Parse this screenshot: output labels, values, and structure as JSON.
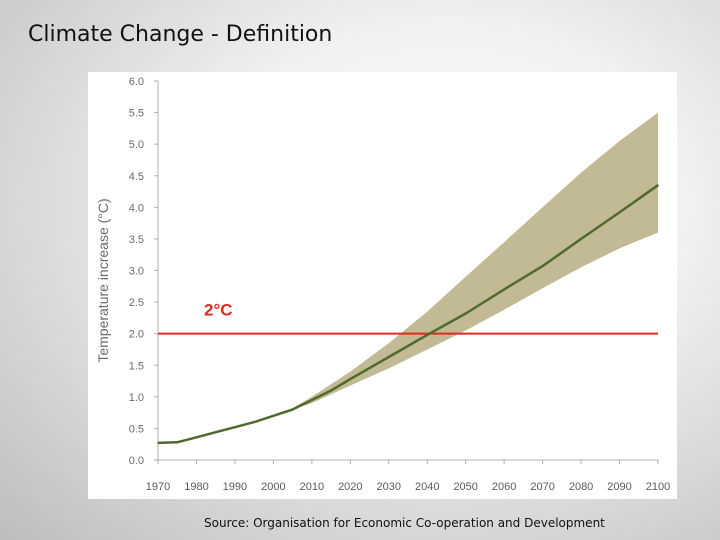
{
  "slide": {
    "title": "Climate Change - Definition",
    "source": "Source: Organisation for Economic Co-operation and Development"
  },
  "chart_data": {
    "type": "line",
    "title": "",
    "xlabel": "",
    "ylabel": "Temperature increase (°C)",
    "xlim": [
      1970,
      2100
    ],
    "ylim": [
      0,
      6.0
    ],
    "x_ticks": [
      "1970",
      "1980",
      "1990",
      "2000",
      "2010",
      "2020",
      "2030",
      "2040",
      "2050",
      "2060",
      "2070",
      "2080",
      "2090",
      "2100"
    ],
    "y_ticks": [
      "0.0",
      "0.5",
      "1.0",
      "1.5",
      "2.0",
      "2.5",
      "3.0",
      "3.5",
      "4.0",
      "4.5",
      "5.0",
      "5.5",
      "6.0"
    ],
    "grid": false,
    "series": [
      {
        "name": "",
        "color": "#4f6a2c",
        "x": [
          1970,
          1975,
          1980,
          1985,
          1990,
          1995,
          2000,
          2005,
          2010,
          2015,
          2020,
          2030,
          2040,
          2050,
          2060,
          2070,
          2080,
          2090,
          2100
        ],
        "y": [
          0.27,
          0.28,
          0.36,
          0.44,
          0.52,
          0.6,
          0.7,
          0.8,
          0.95,
          1.1,
          1.28,
          1.63,
          1.98,
          2.32,
          2.7,
          3.07,
          3.5,
          3.92,
          4.35
        ]
      }
    ],
    "band": {
      "color": "#c2b995",
      "x": [
        2005,
        2010,
        2020,
        2030,
        2040,
        2050,
        2060,
        2070,
        2080,
        2090,
        2100
      ],
      "upper": [
        0.82,
        1.0,
        1.4,
        1.85,
        2.35,
        2.9,
        3.45,
        4.0,
        4.55,
        5.05,
        5.5
      ],
      "lower": [
        0.8,
        0.9,
        1.18,
        1.45,
        1.75,
        2.05,
        2.38,
        2.72,
        3.05,
        3.35,
        3.6
      ]
    },
    "threshold": {
      "label": "2°C",
      "value": 2.0,
      "color": "#e02a1f"
    }
  }
}
